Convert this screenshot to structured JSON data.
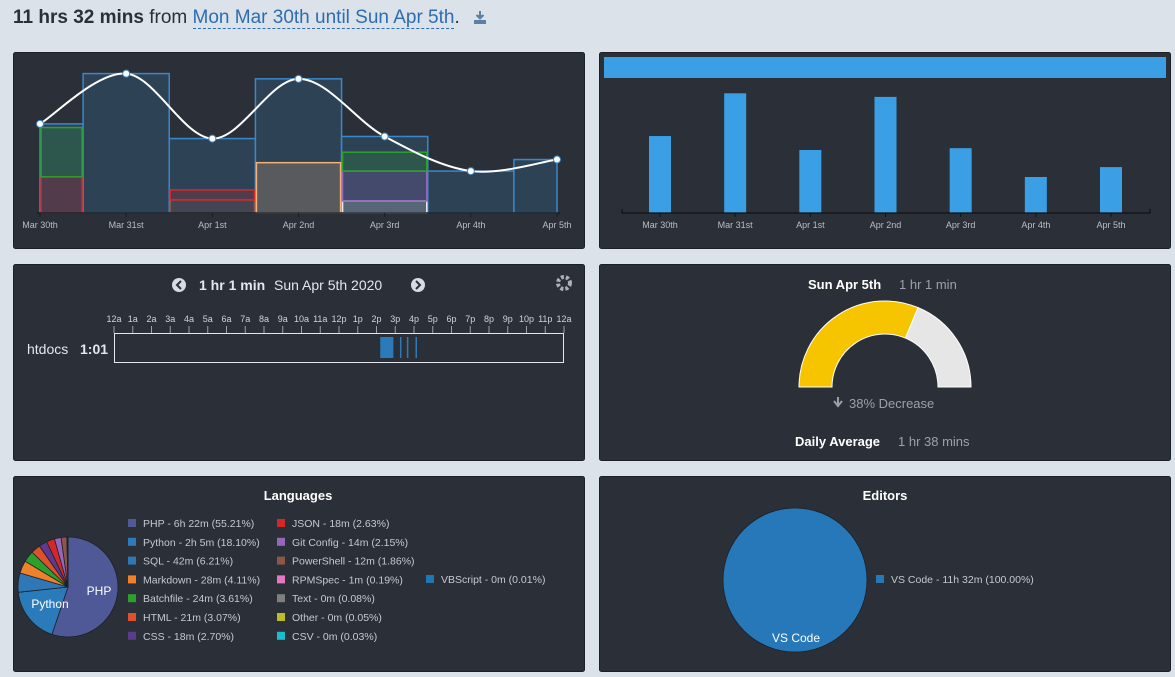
{
  "header": {
    "total": "11 hrs 32 mins",
    "from": "from",
    "range": "Mon Mar 30th until Sun Apr 5th",
    "end": "."
  },
  "activity": {
    "type": "line",
    "x": [
      "Mar 30th",
      "Mar 31st",
      "Apr 1st",
      "Apr 2nd",
      "Apr 3rd",
      "Apr 4th",
      "Apr 5th"
    ],
    "values": [
      1.7,
      2.66,
      1.42,
      2.56,
      1.46,
      0.8,
      1.02
    ],
    "ylim": [
      0,
      2.9
    ],
    "line_color": "#ffffff",
    "outline_color": "#3a87c9",
    "fill_color": "#2e4255",
    "stacks": [
      {
        "color": "#e6e8f2",
        "values": [
          null,
          null,
          null,
          null,
          0.23,
          null,
          null
        ]
      },
      {
        "color": "#8c564b",
        "values": [
          null,
          null,
          0.25,
          null,
          null,
          null,
          null
        ]
      },
      {
        "color": "#d62728",
        "values": [
          0.69,
          null,
          0.19,
          null,
          null,
          null,
          null
        ]
      },
      {
        "color": "#f2b27a",
        "values": [
          null,
          null,
          null,
          0.96,
          null,
          null,
          null
        ]
      },
      {
        "color": "#9467bd",
        "values": [
          null,
          null,
          null,
          null,
          0.57,
          null,
          null
        ]
      },
      {
        "color": "#2ca02c",
        "values": [
          0.94,
          null,
          null,
          null,
          0.36,
          null,
          null
        ]
      }
    ]
  },
  "daily_bars": {
    "type": "bar",
    "categories": [
      "Mar 30th",
      "Mar 31st",
      "Apr 1st",
      "Apr 2nd",
      "Apr 3rd",
      "Apr 4th",
      "Apr 5th"
    ],
    "values": [
      1.71,
      2.66,
      1.4,
      2.58,
      1.44,
      0.8,
      1.02
    ],
    "ylim": [
      0,
      3.4
    ],
    "color": "#3b9fe6"
  },
  "timeline": {
    "total": "1 hr 1 min",
    "date": "Sun Apr 5th 2020",
    "hours": [
      "12a",
      "1a",
      "2a",
      "3a",
      "4a",
      "5a",
      "6a",
      "7a",
      "8a",
      "9a",
      "10a",
      "11a",
      "12p",
      "1p",
      "2p",
      "3p",
      "4p",
      "5p",
      "6p",
      "7p",
      "8p",
      "9p",
      "10p",
      "11p",
      "12a"
    ],
    "project": "htdocs",
    "project_time": "1:01",
    "segments": [
      [
        14.2,
        14.9
      ],
      [
        15.25,
        15.32
      ],
      [
        15.62,
        15.69
      ],
      [
        16.08,
        16.15
      ]
    ],
    "color": "#2b7bba"
  },
  "today": {
    "day": "Sun Apr 5th",
    "time": "1 hr 1 min",
    "value": 1.02,
    "max": 1.63,
    "colors": [
      "#f6c500",
      "#e6e6e6"
    ],
    "change": "38% Decrease",
    "average_label": "Daily Average",
    "average": "1 hr 38 mins"
  },
  "languages": {
    "type": "pie",
    "title": "Languages",
    "categories": [
      "PHP",
      "Python",
      "SQL",
      "Markdown",
      "Batchfile",
      "HTML",
      "CSS",
      "JSON",
      "Git Config",
      "PowerShell",
      "RPMSpec",
      "Text",
      "Other",
      "CSV",
      "VBScript"
    ],
    "values": [
      55.21,
      18.1,
      6.21,
      4.11,
      3.61,
      3.07,
      2.7,
      2.63,
      2.15,
      1.86,
      0.19,
      0.08,
      0.05,
      0.03,
      0.01
    ],
    "value_labels": [
      "PHP - 6h 22m (55.21%)",
      "Python - 2h 5m (18.10%)",
      "SQL - 42m (6.21%)",
      "Markdown - 28m (4.11%)",
      "Batchfile - 24m (3.61%)",
      "HTML - 21m (3.07%)",
      "CSS - 18m (2.70%)",
      "JSON - 18m (2.63%)",
      "Git Config - 14m (2.15%)",
      "PowerShell - 12m (1.86%)",
      "RPMSpec - 1m (0.19%)",
      "Text - 0m (0.08%)",
      "Other - 0m (0.05%)",
      "CSV - 0m (0.03%)",
      "VBScript - 0m (0.01%)"
    ],
    "colors": [
      "#4f5998",
      "#2b7bbb",
      "#2f77b5",
      "#f0812b",
      "#2ca02c",
      "#e0502a",
      "#5c3b8f",
      "#d62728",
      "#9467bd",
      "#8c564b",
      "#e377c2",
      "#7f7f7f",
      "#bcbd22",
      "#17becf",
      "#1f77b4"
    ]
  },
  "editors": {
    "type": "pie",
    "title": "Editors",
    "categories": [
      "VS Code"
    ],
    "values": [
      100.0
    ],
    "value_labels": [
      "VS Code - 11h 32m (100.00%)"
    ],
    "colors": [
      "#2678b8"
    ]
  }
}
